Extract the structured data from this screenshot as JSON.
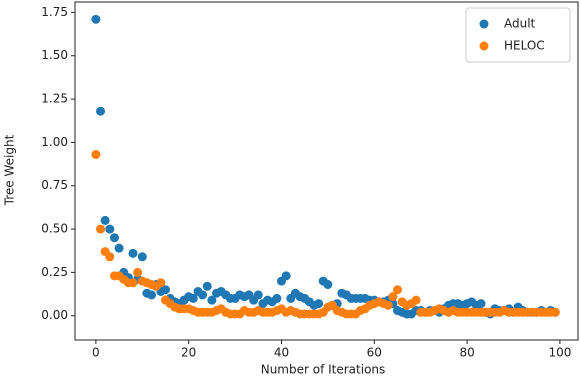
{
  "chart_data": {
    "type": "scatter",
    "xlabel": "Number of Iterations",
    "ylabel": "Tree Weight",
    "x": [
      0,
      1,
      2,
      3,
      4,
      5,
      6,
      7,
      8,
      9,
      10,
      11,
      12,
      13,
      14,
      15,
      16,
      17,
      18,
      19,
      20,
      21,
      22,
      23,
      24,
      25,
      26,
      27,
      28,
      29,
      30,
      31,
      32,
      33,
      34,
      35,
      36,
      37,
      38,
      39,
      40,
      41,
      42,
      43,
      44,
      45,
      46,
      47,
      48,
      49,
      50,
      51,
      52,
      53,
      54,
      55,
      56,
      57,
      58,
      59,
      60,
      61,
      62,
      63,
      64,
      65,
      66,
      67,
      68,
      69,
      70,
      71,
      72,
      73,
      74,
      75,
      76,
      77,
      78,
      79,
      80,
      81,
      82,
      83,
      84,
      85,
      86,
      87,
      88,
      89,
      90,
      91,
      92,
      93,
      94,
      95,
      96,
      97,
      98,
      99
    ],
    "series": [
      {
        "name": "Adult",
        "color": "#1f77b4",
        "values": [
          1.71,
          1.18,
          0.55,
          0.5,
          0.45,
          0.39,
          0.25,
          0.22,
          0.36,
          0.21,
          0.34,
          0.13,
          0.12,
          0.18,
          0.14,
          0.15,
          0.1,
          0.08,
          0.07,
          0.09,
          0.11,
          0.1,
          0.14,
          0.12,
          0.17,
          0.09,
          0.13,
          0.14,
          0.12,
          0.1,
          0.1,
          0.12,
          0.11,
          0.12,
          0.09,
          0.12,
          0.07,
          0.09,
          0.08,
          0.1,
          0.2,
          0.23,
          0.1,
          0.13,
          0.11,
          0.1,
          0.08,
          0.06,
          0.07,
          0.2,
          0.18,
          0.06,
          0.07,
          0.13,
          0.12,
          0.1,
          0.1,
          0.1,
          0.1,
          0.09,
          0.09,
          0.08,
          0.08,
          0.09,
          0.07,
          0.03,
          0.02,
          0.01,
          0.01,
          0.03,
          0.03,
          0.02,
          0.03,
          0.03,
          0.02,
          0.04,
          0.06,
          0.07,
          0.07,
          0.06,
          0.07,
          0.08,
          0.06,
          0.07,
          0.02,
          0.01,
          0.04,
          0.03,
          0.03,
          0.04,
          0.02,
          0.05,
          0.03,
          0.02,
          0.02,
          0.02,
          0.03,
          0.02,
          0.03,
          0.02
        ]
      },
      {
        "name": "HELOC",
        "color": "#ff7f0e",
        "values": [
          0.93,
          0.5,
          0.37,
          0.34,
          0.23,
          0.23,
          0.21,
          0.19,
          0.19,
          0.25,
          0.2,
          0.19,
          0.18,
          0.17,
          0.19,
          0.09,
          0.07,
          0.05,
          0.04,
          0.04,
          0.04,
          0.03,
          0.02,
          0.02,
          0.02,
          0.02,
          0.03,
          0.04,
          0.02,
          0.01,
          0.01,
          0.01,
          0.03,
          0.02,
          0.02,
          0.03,
          0.02,
          0.02,
          0.02,
          0.03,
          0.04,
          0.02,
          0.03,
          0.02,
          0.01,
          0.01,
          0.01,
          0.01,
          0.01,
          0.02,
          0.05,
          0.06,
          0.03,
          0.02,
          0.01,
          0.01,
          0.01,
          0.03,
          0.04,
          0.06,
          0.07,
          0.08,
          0.07,
          0.06,
          0.11,
          0.15,
          0.08,
          0.06,
          0.07,
          0.09,
          0.02,
          0.02,
          0.02,
          0.03,
          0.04,
          0.03,
          0.02,
          0.03,
          0.02,
          0.02,
          0.02,
          0.02,
          0.02,
          0.02,
          0.02,
          0.02,
          0.02,
          0.02,
          0.03,
          0.02,
          0.02,
          0.02,
          0.02,
          0.02,
          0.02,
          0.02,
          0.02,
          0.02,
          0.02,
          0.02
        ]
      }
    ],
    "xlim": [
      -4.5,
      103.9
    ],
    "ylim": [
      -0.14,
      1.81
    ],
    "xticks": [
      0,
      20,
      40,
      60,
      80,
      100
    ],
    "yticks": [
      {
        "value": 0,
        "label": "0.00"
      },
      {
        "value": 0.25,
        "label": "0.25"
      },
      {
        "value": 0.5,
        "label": "0.50"
      },
      {
        "value": 0.75,
        "label": "0.75"
      },
      {
        "value": 1,
        "label": "1.00"
      },
      {
        "value": 1.25,
        "label": "1.25"
      },
      {
        "value": 1.5,
        "label": "1.50"
      },
      {
        "value": 1.75,
        "label": "1.75"
      }
    ],
    "legend": "upper right",
    "grid": false
  }
}
